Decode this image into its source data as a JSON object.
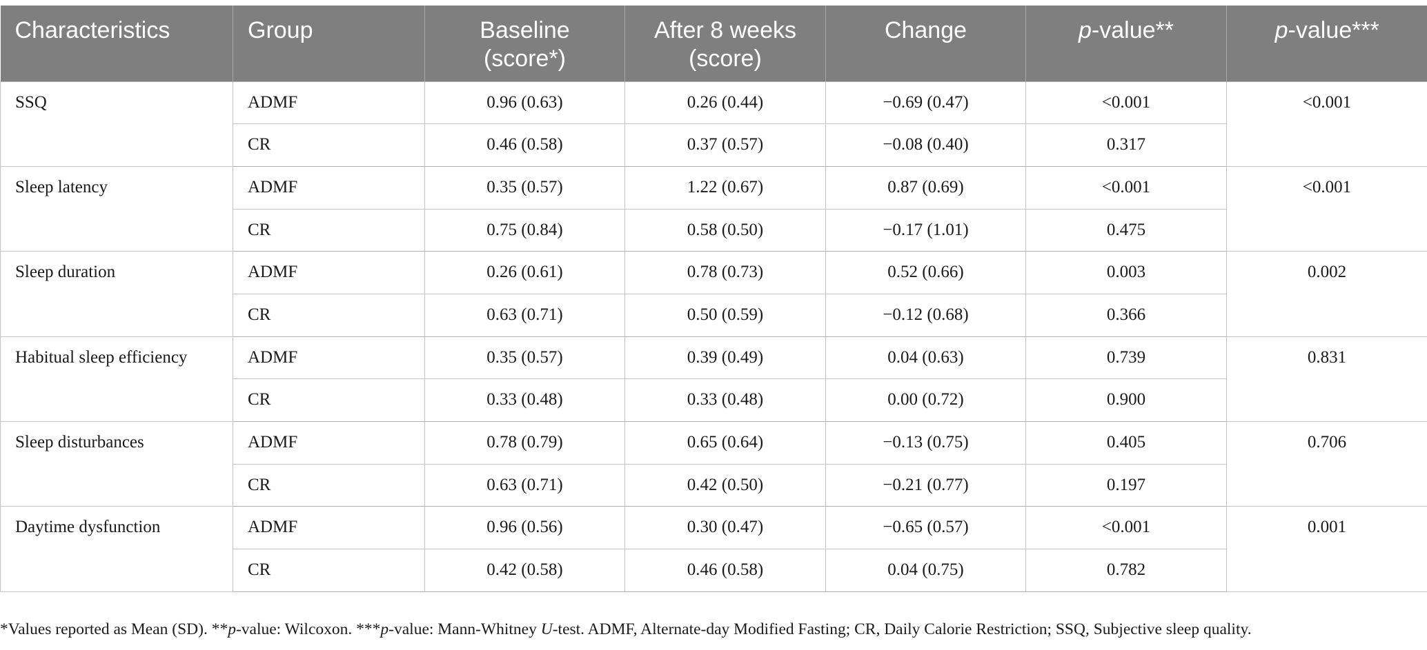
{
  "table": {
    "headers": {
      "characteristics": "Characteristics",
      "group": "Group",
      "baseline_line1": "Baseline",
      "baseline_line2": "(score*)",
      "after_line1": "After 8 weeks",
      "after_line2": "(score)",
      "change": "Change",
      "pvalue_within_p": "p",
      "pvalue_within_rest": "-value**",
      "pvalue_between_p": "p",
      "pvalue_between_rest": "-value***"
    },
    "rows": [
      {
        "characteristic": "SSQ",
        "p_between": "<0.001",
        "groups": [
          {
            "group": "ADMF",
            "baseline": "0.96 (0.63)",
            "after": "0.26 (0.44)",
            "change": "−0.69 (0.47)",
            "p_within": "<0.001"
          },
          {
            "group": "CR",
            "baseline": "0.46 (0.58)",
            "after": "0.37 (0.57)",
            "change": "−0.08 (0.40)",
            "p_within": "0.317"
          }
        ]
      },
      {
        "characteristic": "Sleep latency",
        "p_between": "<0.001",
        "groups": [
          {
            "group": "ADMF",
            "baseline": "0.35 (0.57)",
            "after": "1.22 (0.67)",
            "change": "0.87 (0.69)",
            "p_within": "<0.001"
          },
          {
            "group": "CR",
            "baseline": "0.75 (0.84)",
            "after": "0.58 (0.50)",
            "change": "−0.17 (1.01)",
            "p_within": "0.475"
          }
        ]
      },
      {
        "characteristic": "Sleep duration",
        "p_between": "0.002",
        "groups": [
          {
            "group": "ADMF",
            "baseline": "0.26 (0.61)",
            "after": "0.78 (0.73)",
            "change": "0.52 (0.66)",
            "p_within": "0.003"
          },
          {
            "group": "CR",
            "baseline": "0.63 (0.71)",
            "after": "0.50 (0.59)",
            "change": "−0.12 (0.68)",
            "p_within": "0.366"
          }
        ]
      },
      {
        "characteristic": "Habitual sleep efficiency",
        "p_between": "0.831",
        "groups": [
          {
            "group": "ADMF",
            "baseline": "0.35 (0.57)",
            "after": "0.39 (0.49)",
            "change": "0.04 (0.63)",
            "p_within": "0.739"
          },
          {
            "group": "CR",
            "baseline": "0.33 (0.48)",
            "after": "0.33 (0.48)",
            "change": "0.00 (0.72)",
            "p_within": "0.900"
          }
        ]
      },
      {
        "characteristic": "Sleep disturbances",
        "p_between": "0.706",
        "groups": [
          {
            "group": "ADMF",
            "baseline": "0.78 (0.79)",
            "after": "0.65 (0.64)",
            "change": "−0.13 (0.75)",
            "p_within": "0.405"
          },
          {
            "group": "CR",
            "baseline": "0.63 (0.71)",
            "after": "0.42 (0.50)",
            "change": "−0.21 (0.77)",
            "p_within": "0.197"
          }
        ]
      },
      {
        "characteristic": "Daytime dysfunction",
        "p_between": "0.001",
        "groups": [
          {
            "group": "ADMF",
            "baseline": "0.96 (0.56)",
            "after": "0.30 (0.47)",
            "change": "−0.65 (0.57)",
            "p_within": "<0.001"
          },
          {
            "group": "CR",
            "baseline": "0.42 (0.58)",
            "after": "0.46 (0.58)",
            "change": "0.04 (0.75)",
            "p_within": "0.782"
          }
        ]
      }
    ]
  },
  "footnote": {
    "part1": "*Values reported as Mean (SD). **",
    "p1": "p",
    "part2": "-value: Wilcoxon. ***",
    "p2": "p",
    "part3": "-value: Mann-Whitney ",
    "u": "U",
    "part4": "-test. ADMF, Alternate-day Modified Fasting; CR, Daily Calorie Restriction; SSQ, Subjective sleep quality."
  },
  "colors": {
    "header_bg": "#7f7f7f",
    "header_text": "#ffffff",
    "grid_lines": "#c4c4c4"
  }
}
